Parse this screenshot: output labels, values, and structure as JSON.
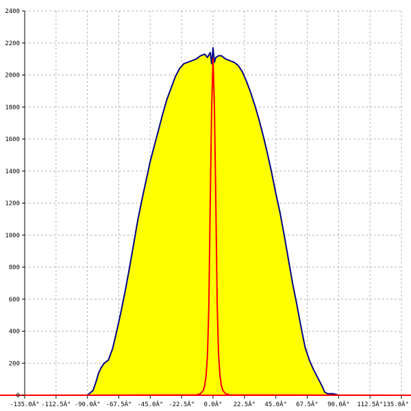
{
  "chart_data": {
    "type": "area",
    "title": "",
    "xlabel": "",
    "ylabel": "",
    "xlim": [
      -135,
      135
    ],
    "ylim": [
      0,
      2400
    ],
    "grid": true,
    "x_ticks": [
      -135,
      -112.5,
      -90,
      -67.5,
      -45,
      -22.5,
      0,
      22.5,
      45,
      67.5,
      90,
      112.5,
      135
    ],
    "x_tick_labels": [
      "-135.0Â°",
      "-112.5Â°",
      "-90.0Â°",
      "-67.5Â°",
      "-45.0Â°",
      "-22.5Â°",
      "0.0Â°",
      "22.5Â°",
      "45.0Â°",
      "67.5Â°",
      "90.0Â°",
      "112.5Â°",
      "135.0Â°"
    ],
    "y_ticks": [
      0,
      200,
      400,
      600,
      800,
      1000,
      1200,
      1400,
      1600,
      1800,
      2000,
      2200,
      2400
    ],
    "y_tick_labels": [
      "0",
      "200",
      "400",
      "600",
      "800",
      "1000",
      "1200",
      "1400",
      "1600",
      "1800",
      "2000",
      "2200",
      "2400"
    ],
    "series": [
      {
        "style": "filled-area",
        "fill_color": "#ffff00",
        "line_color": "#00008b",
        "x": [
          -135,
          -90,
          -88,
          -86,
          -84,
          -82,
          -80,
          -78,
          -75,
          -72,
          -69,
          -66,
          -63,
          -60,
          -57,
          -54,
          -51,
          -48,
          -45,
          -42,
          -39,
          -36,
          -33,
          -30,
          -27,
          -24,
          -21,
          -18,
          -15,
          -12,
          -9,
          -6,
          -4,
          -2,
          -1,
          0,
          1,
          2,
          4,
          6,
          9,
          12,
          15,
          18,
          21,
          24,
          27,
          30,
          33,
          36,
          39,
          42,
          45,
          48,
          51,
          54,
          57,
          60,
          63,
          66,
          69,
          72,
          75,
          78,
          80,
          82,
          84,
          86,
          88,
          90,
          135
        ],
        "y": [
          0,
          0,
          15,
          30,
          80,
          140,
          175,
          200,
          220,
          290,
          400,
          520,
          650,
          790,
          940,
          1090,
          1220,
          1340,
          1460,
          1560,
          1660,
          1760,
          1850,
          1920,
          1990,
          2040,
          2070,
          2080,
          2090,
          2100,
          2120,
          2130,
          2110,
          2140,
          2070,
          2170,
          2080,
          2110,
          2120,
          2120,
          2100,
          2090,
          2080,
          2060,
          2020,
          1960,
          1890,
          1810,
          1720,
          1620,
          1510,
          1390,
          1260,
          1140,
          1000,
          850,
          700,
          570,
          430,
          300,
          220,
          160,
          110,
          60,
          20,
          10,
          10,
          10,
          5,
          0,
          0
        ]
      },
      {
        "style": "line",
        "line_color": "#ff0000",
        "x": [
          -135,
          -12,
          -9,
          -7,
          -6,
          -5,
          -4,
          -3,
          -2,
          -1,
          0,
          1,
          2,
          3,
          4,
          5,
          6,
          7,
          9,
          12,
          135
        ],
        "y": [
          0,
          2,
          10,
          30,
          60,
          120,
          250,
          560,
          1200,
          1800,
          2100,
          1800,
          1200,
          560,
          250,
          120,
          60,
          30,
          10,
          2,
          0
        ]
      }
    ]
  }
}
